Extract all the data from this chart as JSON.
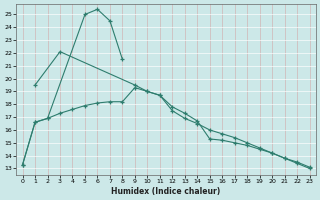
{
  "xlabel": "Humidex (Indice chaleur)",
  "bg_color": "#cce8e8",
  "grid_color": "#aacccc",
  "grid_bg": "#cce8e8",
  "line_color": "#2e7d6e",
  "xlim": [
    -0.5,
    23.5
  ],
  "ylim": [
    12.5,
    25.8
  ],
  "yticks": [
    13,
    14,
    15,
    16,
    17,
    18,
    19,
    20,
    21,
    22,
    23,
    24,
    25
  ],
  "xticks": [
    0,
    1,
    2,
    3,
    4,
    5,
    6,
    7,
    8,
    9,
    10,
    11,
    12,
    13,
    14,
    15,
    16,
    17,
    18,
    19,
    20,
    21,
    22,
    23
  ],
  "line1_x": [
    0,
    1,
    2,
    5,
    6,
    7,
    8
  ],
  "line1_y": [
    13.3,
    16.6,
    16.9,
    25.0,
    25.4,
    24.5,
    21.5
  ],
  "line2_x": [
    1,
    3,
    9,
    10,
    11,
    12,
    13,
    14,
    15,
    16,
    17,
    18,
    19,
    20,
    21,
    22,
    23
  ],
  "line2_y": [
    19.5,
    22.1,
    19.5,
    19.0,
    18.7,
    17.5,
    16.9,
    16.5,
    16.0,
    15.7,
    15.4,
    15.0,
    14.6,
    14.2,
    13.8,
    13.5,
    13.1
  ],
  "line3_x": [
    0,
    1,
    2,
    3,
    4,
    5,
    6,
    7,
    8,
    9,
    10,
    11,
    12,
    13,
    14,
    15,
    16,
    17,
    18,
    19,
    20,
    21,
    22,
    23
  ],
  "line3_y": [
    13.3,
    16.6,
    16.9,
    17.3,
    17.6,
    17.9,
    18.1,
    18.2,
    18.2,
    19.3,
    19.0,
    18.7,
    17.8,
    17.3,
    16.7,
    15.3,
    15.2,
    15.0,
    14.8,
    14.5,
    14.2,
    13.8,
    13.4,
    13.0
  ]
}
